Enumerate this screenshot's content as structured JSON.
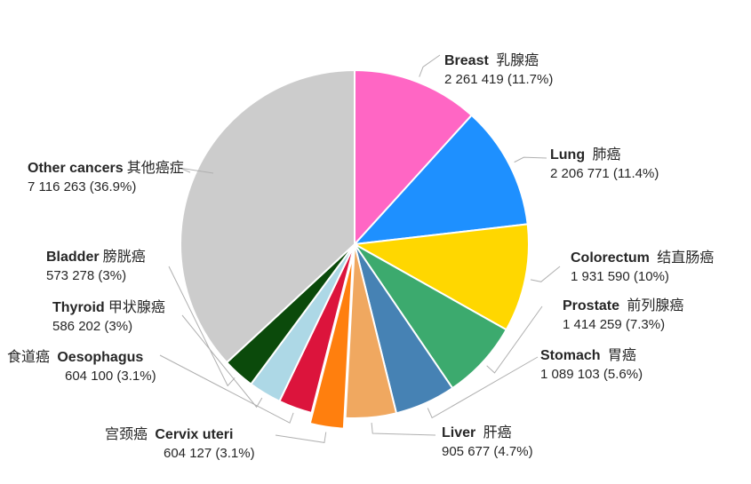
{
  "chart_data": {
    "type": "pie",
    "slices": [
      {
        "name": "Breast",
        "name_cn": "乳腺癌",
        "value": 2261419,
        "value_text": "2 261 419",
        "percent": "(11.7%)",
        "color": "#FF66C4"
      },
      {
        "name": "Lung",
        "name_cn": "肺癌",
        "value": 2206771,
        "value_text": "2 206 771",
        "percent": "(11.4%)",
        "color": "#1E90FF"
      },
      {
        "name": "Colorectum",
        "name_cn": "结直肠癌",
        "value": 1931590,
        "value_text": "1 931 590",
        "percent": "(10%)",
        "color": "#FFD700"
      },
      {
        "name": "Prostate",
        "name_cn": "前列腺癌",
        "value": 1414259,
        "value_text": "1 414 259",
        "percent": "(7.3%)",
        "color": "#3CAA6E"
      },
      {
        "name": "Stomach",
        "name_cn": "胃癌",
        "value": 1089103,
        "value_text": "1 089 103",
        "percent": "(5.6%)",
        "color": "#4682B4"
      },
      {
        "name": "Liver",
        "name_cn": "肝癌",
        "value": 905677,
        "value_text": "905 677",
        "percent": "(4.7%)",
        "color": "#F0A860"
      },
      {
        "name": "Cervix uteri",
        "name_cn": "宫颈癌",
        "value": 604127,
        "value_text": "604 127",
        "percent": "(3.1%)",
        "color": "#FF7F0E",
        "exploded": true
      },
      {
        "name": "Oesophagus",
        "name_cn": "食道癌",
        "value": 604100,
        "value_text": "604 100",
        "percent": "(3.1%)",
        "color": "#DC143C"
      },
      {
        "name": "Thyroid",
        "name_cn": "甲状腺癌",
        "value": 586202,
        "value_text": "586 202",
        "percent": "(3%)",
        "color": "#ADD8E6"
      },
      {
        "name": "Bladder",
        "name_cn": "膀胱癌",
        "value": 573278,
        "value_text": "573 278",
        "percent": "(3%)",
        "color": "#0B4A0B"
      },
      {
        "name": "Other cancers",
        "name_cn": "其他癌症",
        "value": 7116263,
        "value_text": "7 116 263",
        "percent": "(36.9%)",
        "color": "#CCCCCC"
      }
    ],
    "start_angle_deg": 0,
    "direction": "clockwise"
  }
}
